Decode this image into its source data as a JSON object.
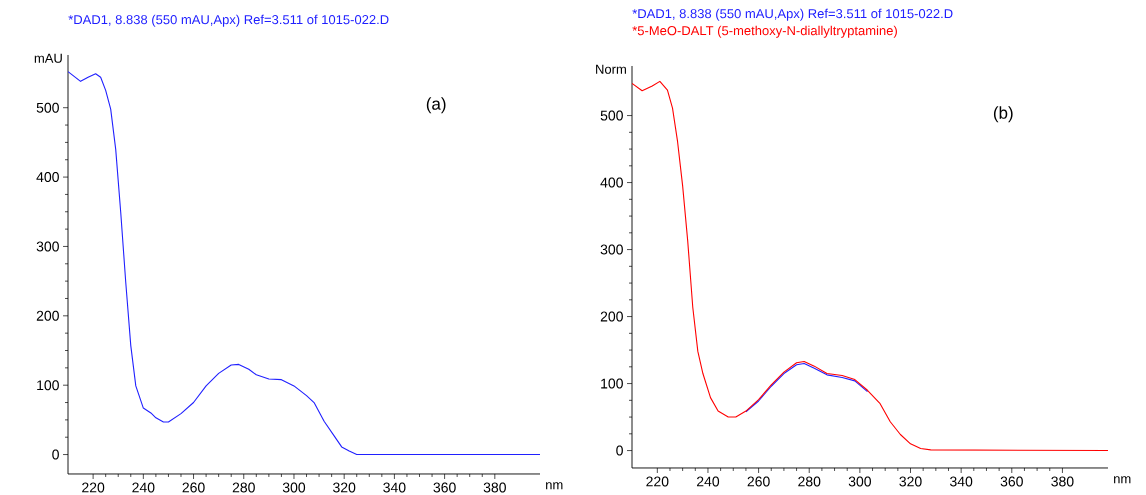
{
  "chart_data": [
    {
      "type": "line",
      "xlabel": "nm",
      "ylabel": "mAU",
      "annotations": [
        "(a)"
      ],
      "grid": false,
      "xlim": [
        210,
        398
      ],
      "ylim": [
        -28,
        576
      ],
      "xticks": [
        220,
        240,
        260,
        280,
        300,
        320,
        340,
        360,
        380
      ],
      "yticks": [
        0,
        100,
        200,
        300,
        400,
        500
      ],
      "series": [
        {
          "name": "*DAD1, 8.838 (550 mAU,Apx) Ref=3.511 of 1015-022.D",
          "color": "#2020ff",
          "x": [
            210,
            215,
            218,
            221,
            223,
            225,
            227,
            229,
            231,
            233,
            235,
            237,
            240,
            243,
            245,
            248,
            250,
            255,
            260,
            265,
            270,
            275,
            278,
            282,
            285,
            290,
            295,
            300,
            305,
            308,
            312,
            316,
            319,
            322,
            325,
            398
          ],
          "values": [
            552,
            538,
            544,
            549,
            544,
            525,
            498,
            440,
            349,
            248,
            157,
            99,
            67,
            60,
            53,
            47,
            47,
            59,
            75,
            99,
            117,
            129,
            130,
            123,
            115,
            109,
            108,
            99,
            85,
            75,
            48,
            27,
            11,
            5,
            0,
            0
          ]
        }
      ]
    },
    {
      "type": "line",
      "xlabel": "nm",
      "ylabel": "Norm",
      "annotations": [
        "(b)"
      ],
      "grid": false,
      "xlim": [
        210,
        398
      ],
      "ylim": [
        -26,
        574
      ],
      "xticks": [
        220,
        240,
        260,
        280,
        300,
        320,
        340,
        360,
        380
      ],
      "yticks": [
        0,
        100,
        200,
        300,
        400,
        500
      ],
      "series": [
        {
          "name": "*DAD1, 8.838 (550 mAU,Apx) Ref=3.511 of 1015-022.D",
          "color": "#2020ff",
          "x": [
            255,
            260,
            265,
            270,
            275,
            278,
            282,
            287,
            293,
            298,
            303
          ],
          "values": [
            58,
            74,
            96,
            115,
            128,
            130,
            123,
            113,
            109,
            104,
            88
          ]
        },
        {
          "name": "*5-MeO-DALT (5-methoxy-N-diallyltryptamine)",
          "color": "#ff0000",
          "x": [
            210,
            214,
            218,
            221,
            224,
            226,
            228,
            230,
            232,
            234,
            236,
            238,
            241,
            244,
            248,
            251,
            255,
            260,
            265,
            270,
            275,
            278,
            282,
            287,
            293,
            298,
            303,
            308,
            312,
            316,
            320,
            324,
            328,
            398
          ],
          "values": [
            548,
            537,
            544,
            551,
            538,
            511,
            461,
            395,
            313,
            214,
            148,
            115,
            79,
            59,
            50,
            50,
            59,
            76,
            98,
            117,
            131,
            133,
            126,
            115,
            112,
            106,
            90,
            70,
            43,
            24,
            10,
            3,
            1,
            0
          ]
        }
      ]
    }
  ]
}
